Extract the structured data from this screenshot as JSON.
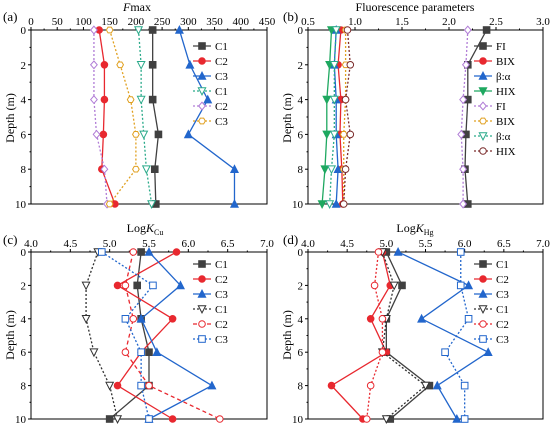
{
  "chart_data": [
    {
      "type": "line",
      "panel_label": "(a)",
      "title": "Fmax",
      "title_italic_part": "F",
      "title_rest": "max",
      "ylabel": "Depth (m)",
      "xlim": [
        0,
        450
      ],
      "ylim": [
        0,
        10
      ],
      "xticks": [
        "0",
        "50",
        "100",
        "150",
        "200",
        "250",
        "300",
        "350",
        "400",
        "450"
      ],
      "yticks": [
        "0",
        "2",
        "4",
        "6",
        "8",
        "10"
      ],
      "depth": [
        0,
        2,
        4,
        6,
        8,
        10
      ],
      "series": [
        {
          "name": "C1",
          "color": "#404040",
          "dash": "",
          "marker": "square",
          "x": [
            232,
            232,
            232,
            243,
            236,
            238
          ]
        },
        {
          "name": "C2",
          "color": "#e8282f",
          "dash": "",
          "marker": "circle",
          "x": [
            130,
            140,
            140,
            138,
            135,
            160
          ]
        },
        {
          "name": "C3",
          "color": "#2266cc",
          "dash": "",
          "marker": "triangle",
          "x": [
            283,
            303,
            337,
            300,
            388,
            388
          ]
        },
        {
          "name": "C1",
          "color": "#2aaa8a",
          "dash": "2,2",
          "marker": "tri-down-open",
          "x": [
            205,
            210,
            210,
            215,
            220,
            230
          ]
        },
        {
          "name": "C2",
          "color": "#b07cd6",
          "dash": "2,2",
          "marker": "diamond-open",
          "x": [
            120,
            120,
            120,
            125,
            140,
            145
          ]
        },
        {
          "name": "C3",
          "color": "#e0a020",
          "dash": "2,2",
          "marker": "hex-open",
          "x": [
            150,
            170,
            190,
            200,
            200,
            150
          ]
        }
      ]
    },
    {
      "type": "line",
      "panel_label": "(b)",
      "title": "Fluorescence parameters",
      "ylabel": "Depth (m)",
      "xlim": [
        0.5,
        3.0
      ],
      "ylim": [
        0,
        10
      ],
      "xticks": [
        "0.5",
        "1.0",
        "1.5",
        "2.0",
        "2.5",
        "3.0"
      ],
      "yticks": [
        "0",
        "2",
        "4",
        "6",
        "8",
        "10"
      ],
      "depth": [
        0,
        2,
        4,
        6,
        8,
        10
      ],
      "series": [
        {
          "name": "FI",
          "color": "#404040",
          "dash": "",
          "marker": "square",
          "x": [
            2.4,
            2.2,
            2.2,
            2.18,
            2.17,
            2.2
          ]
        },
        {
          "name": "BIX",
          "color": "#e8282f",
          "dash": "",
          "marker": "circle",
          "x": [
            0.85,
            0.82,
            0.85,
            0.84,
            0.86,
            0.87
          ]
        },
        {
          "name": "β:α",
          "color": "#2266cc",
          "dash": "",
          "marker": "triangle",
          "x": [
            0.8,
            0.78,
            0.8,
            0.8,
            0.82,
            0.8
          ]
        },
        {
          "name": "HIX",
          "color": "#1ea860",
          "dash": "",
          "marker": "tri-down",
          "x": [
            0.75,
            0.73,
            0.7,
            0.7,
            0.68,
            0.65
          ]
        },
        {
          "name": "FI",
          "color": "#b07cd6",
          "dash": "2,2",
          "marker": "diamond-open",
          "x": [
            2.2,
            2.18,
            2.15,
            2.13,
            2.15,
            2.15
          ]
        },
        {
          "name": "BIX",
          "color": "#e0a020",
          "dash": "2,2",
          "marker": "hex-open",
          "x": [
            0.9,
            0.9,
            0.9,
            0.88,
            0.88,
            0.88
          ]
        },
        {
          "name": "β:α",
          "color": "#2aaa8a",
          "dash": "2,2",
          "marker": "tri-down-open",
          "x": [
            0.8,
            0.78,
            0.78,
            0.78,
            0.75,
            0.73
          ]
        },
        {
          "name": "HIX",
          "color": "#7a2a2a",
          "dash": "2,2",
          "marker": "circle-open",
          "x": [
            0.92,
            0.95,
            0.9,
            0.95,
            0.9,
            0.88
          ]
        }
      ]
    },
    {
      "type": "line",
      "panel_label": "(c)",
      "title": "LogKCu",
      "title_base": "Log",
      "title_k": "K",
      "title_sub": "Cu",
      "ylabel": "Depth (m)",
      "xlim": [
        4.0,
        7.0
      ],
      "ylim": [
        0,
        10
      ],
      "xticks": [
        "4.0",
        "4.5",
        "5.0",
        "5.5",
        "6.0",
        "6.5",
        "7.0"
      ],
      "yticks": [
        "0",
        "2",
        "4",
        "6",
        "8",
        "10"
      ],
      "depth": [
        0,
        2,
        4,
        6,
        8,
        10
      ],
      "series": [
        {
          "name": "C1",
          "color": "#404040",
          "dash": "",
          "marker": "square",
          "x": [
            5.4,
            5.35,
            5.4,
            5.5,
            5.5,
            5.0
          ]
        },
        {
          "name": "C2",
          "color": "#e8282f",
          "dash": "",
          "marker": "circle",
          "x": [
            5.85,
            5.1,
            5.8,
            5.4,
            5.1,
            5.8
          ]
        },
        {
          "name": "C3",
          "color": "#2266cc",
          "dash": "",
          "marker": "triangle",
          "x": [
            5.5,
            5.9,
            5.4,
            5.6,
            6.3,
            5.5
          ]
        },
        {
          "name": "C1",
          "color": "#303030",
          "dash": "2,2",
          "marker": "tri-down-open",
          "x": [
            4.85,
            4.7,
            4.7,
            4.8,
            5.0,
            5.1
          ]
        },
        {
          "name": "C2",
          "color": "#e8282f",
          "dash": "4,3",
          "marker": "circle-open",
          "x": [
            5.3,
            5.2,
            5.3,
            5.2,
            5.5,
            6.4
          ]
        },
        {
          "name": "C3",
          "color": "#2266cc",
          "dash": "2,2",
          "marker": "square-open",
          "x": [
            4.9,
            5.55,
            5.2,
            5.4,
            5.4,
            5.5
          ]
        }
      ]
    },
    {
      "type": "line",
      "panel_label": "(d)",
      "title": "LogKHg",
      "title_base": "Log",
      "title_k": "K",
      "title_sub": "Hg",
      "ylabel": "Depth (m)",
      "xlim": [
        4.0,
        7.0
      ],
      "ylim": [
        0,
        10
      ],
      "xticks": [
        "4.0",
        "4.5",
        "5.0",
        "5.5",
        "6.0",
        "6.5",
        "7.0"
      ],
      "yticks": [
        "0",
        "2",
        "4",
        "6",
        "8",
        "10"
      ],
      "depth": [
        0,
        2,
        4,
        6,
        8,
        10
      ],
      "series": [
        {
          "name": "C1",
          "color": "#404040",
          "dash": "",
          "marker": "square",
          "x": [
            5.0,
            5.2,
            5.0,
            5.0,
            5.55,
            5.05
          ]
        },
        {
          "name": "C2",
          "color": "#e8282f",
          "dash": "",
          "marker": "circle",
          "x": [
            4.95,
            5.05,
            4.8,
            5.0,
            4.3,
            4.7
          ]
        },
        {
          "name": "C3",
          "color": "#2266cc",
          "dash": "",
          "marker": "triangle",
          "x": [
            5.15,
            6.05,
            5.45,
            6.3,
            5.65,
            5.9
          ]
        },
        {
          "name": "C1",
          "color": "#303030",
          "dash": "2,2",
          "marker": "tri-down-open",
          "x": [
            4.95,
            5.1,
            5.0,
            4.95,
            5.5,
            5.0
          ]
        },
        {
          "name": "C2",
          "color": "#e8282f",
          "dash": "2,2",
          "marker": "circle-open",
          "x": [
            4.9,
            4.85,
            4.95,
            4.95,
            4.8,
            4.75
          ]
        },
        {
          "name": "C3",
          "color": "#2266cc",
          "dash": "2,2",
          "marker": "square-open",
          "x": [
            5.95,
            5.95,
            6.05,
            5.75,
            6.0,
            6.0
          ]
        }
      ]
    }
  ]
}
